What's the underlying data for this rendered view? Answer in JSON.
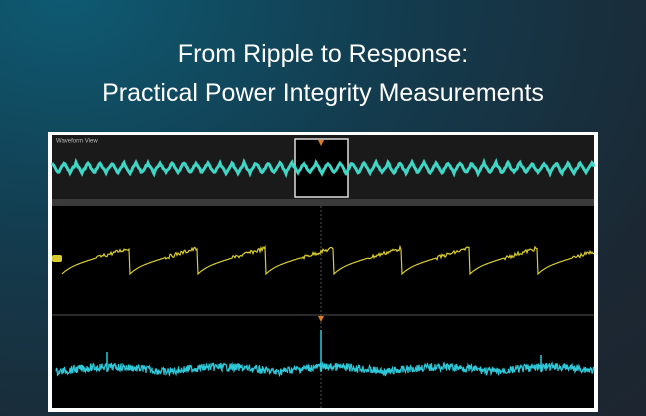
{
  "slide": {
    "title_lines": [
      "From Ripple to Response:",
      "Practical Power Integrity Measurements"
    ],
    "scope": {
      "view_label": "Waveform View"
    }
  }
}
